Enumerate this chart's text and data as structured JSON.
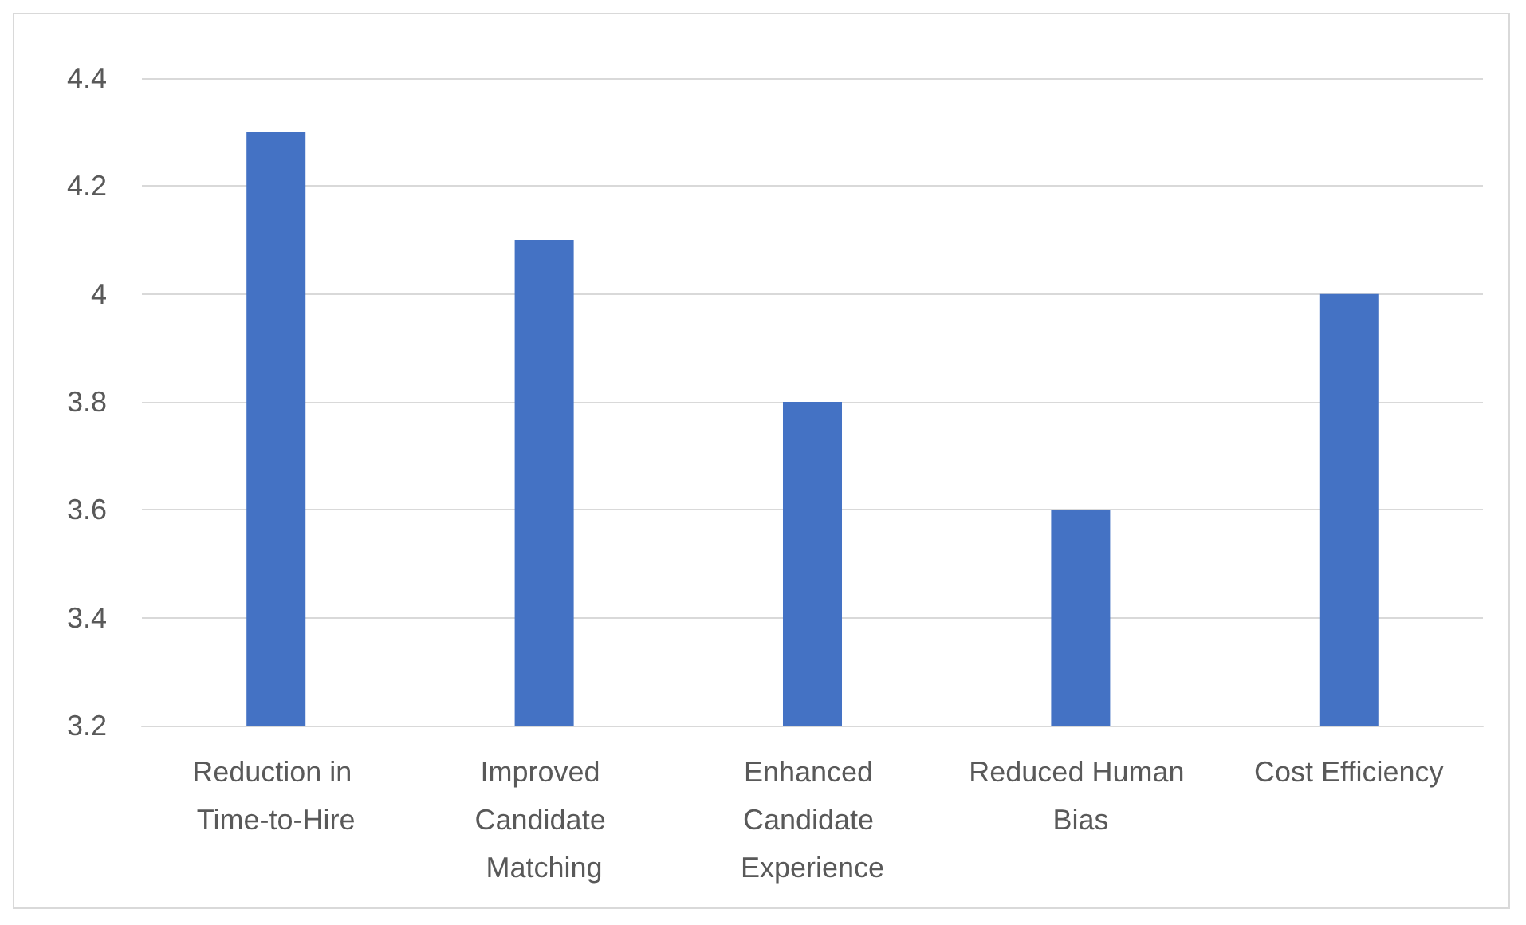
{
  "chart_data": {
    "type": "bar",
    "categories": [
      "Reduction in Time-to-Hire",
      "Improved Candidate Matching",
      "Enhanced Candidate Experience",
      "Reduced Human Bias",
      "Cost Efficiency"
    ],
    "values": [
      4.3,
      4.1,
      3.8,
      3.6,
      4.0
    ],
    "color": "#4472c4",
    "ylim": [
      3.2,
      4.4
    ],
    "yticks": [
      3.2,
      3.4,
      3.6,
      3.8,
      4,
      4.2,
      4.4
    ],
    "grid": "y"
  }
}
